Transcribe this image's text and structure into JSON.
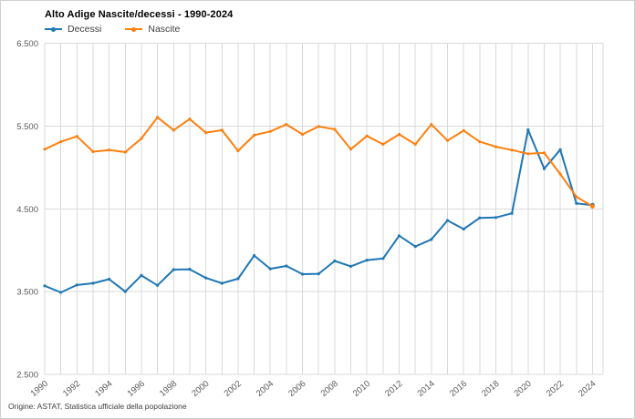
{
  "header": {
    "title": "Alto Adige Nascite/decessi - 1990-2024"
  },
  "footer": {
    "source": "Origine: ASTAT, Statistica ufficiale della popolazione"
  },
  "chart_data": {
    "type": "line",
    "title": "Alto Adige Nascite/decessi - 1990-2024",
    "categories": [
      1990,
      1991,
      1992,
      1993,
      1994,
      1995,
      1996,
      1997,
      1998,
      1999,
      2000,
      2001,
      2002,
      2003,
      2004,
      2005,
      2006,
      2007,
      2008,
      2009,
      2010,
      2011,
      2012,
      2013,
      2014,
      2015,
      2016,
      2017,
      2018,
      2019,
      2020,
      2021,
      2022,
      2023,
      2024
    ],
    "series": [
      {
        "name": "Decessi",
        "color": "#1F77B4",
        "values": [
          3570,
          3490,
          3580,
          3600,
          3650,
          3500,
          3695,
          3575,
          3765,
          3770,
          3665,
          3600,
          3655,
          3935,
          3775,
          3810,
          3710,
          3715,
          3870,
          3805,
          3880,
          3900,
          4175,
          4045,
          4130,
          4360,
          4255,
          4390,
          4395,
          4445,
          5455,
          4985,
          5215,
          4565,
          4545
        ]
      },
      {
        "name": "Nascite",
        "color": "#FF7F0E",
        "values": [
          5220,
          5310,
          5375,
          5190,
          5210,
          5185,
          5350,
          5605,
          5450,
          5585,
          5420,
          5450,
          5200,
          5390,
          5435,
          5520,
          5400,
          5495,
          5460,
          5220,
          5380,
          5280,
          5400,
          5280,
          5520,
          5325,
          5445,
          5310,
          5250,
          5210,
          5165,
          5175,
          4920,
          4645,
          4530
        ]
      }
    ],
    "ylim": [
      2500,
      6500
    ],
    "y_ticks": [
      {
        "value": 6500,
        "label": "6.500"
      },
      {
        "value": 5500,
        "label": "5.500"
      },
      {
        "value": 4500,
        "label": "4.500"
      },
      {
        "value": 3500,
        "label": "3.500"
      },
      {
        "value": 2500,
        "label": "2.500"
      }
    ],
    "x_tick_labels": [
      "1990",
      "1992",
      "1994",
      "1996",
      "1998",
      "2000",
      "2002",
      "2004",
      "2006",
      "2008",
      "2010",
      "2012",
      "2014",
      "2016",
      "2018",
      "2020",
      "2022",
      "2024"
    ],
    "grid": true,
    "legend_position": "top-left",
    "gridline_color": "#D9D9D9",
    "tick_label_color": "#595959"
  }
}
